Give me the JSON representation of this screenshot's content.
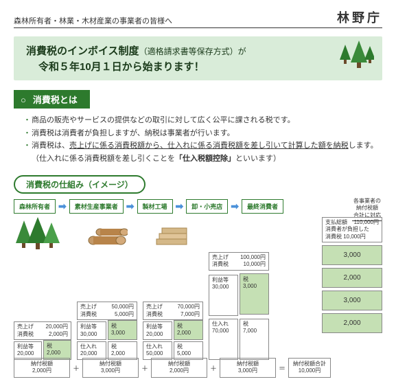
{
  "header": {
    "left": "森林所有者・林業・木材産業の事業者の皆様へ",
    "agency": "林野庁"
  },
  "banner": {
    "line1a": "消費税のインボイス制度",
    "line1b": "（適格請求書等保存方式）が",
    "line2": "令和５年10月１日から始まります！"
  },
  "section1": {
    "title": "消費税とは",
    "bullets": [
      "商品の販売やサービスの提供などの取引に対して広く公平に課される税です。",
      "消費税は消費者が負担しますが、納税は事業者が行います。",
      "消費税は、<u>売上げに係る消費税額から、仕入れに係る消費税額を差し引いて計算した額を納税</u>します。（仕入れに係る消費税額を差し引くことを<b>「仕入税額控除」</b>といいます）"
    ]
  },
  "diagram": {
    "title": "消費税の仕組み（イメージ）",
    "stages": [
      "森林所有者",
      "素材生産事業者",
      "製材工場",
      "卸・小売店",
      "最終消費者"
    ],
    "note_right": "各事業者の\n納付税額\n合計に対応",
    "col1": {
      "sale": "20,000",
      "sale_tax": "2,000",
      "profit": "20,000",
      "tax": "2,000",
      "pay": "2,000"
    },
    "col2": {
      "sale": "50,000",
      "sale_tax": "5,000",
      "profit": "30,000",
      "tax": "3,000",
      "buy": "20,000",
      "buy_tax": "2,000",
      "pay": "3,000"
    },
    "col3": {
      "sale": "70,000",
      "sale_tax": "7,000",
      "profit": "20,000",
      "tax": "2,000",
      "buy": "50,000",
      "buy_tax": "5,000",
      "pay": "2,000"
    },
    "col4": {
      "sale": "100,000",
      "sale_tax": "10,000",
      "profit": "30,000",
      "tax": "3,000",
      "buy": "70,000",
      "buy_tax": "7,000",
      "pay": "3,000"
    },
    "final": {
      "paid": "110,000",
      "burden": "10,000",
      "cells": [
        "3,000",
        "2,000",
        "3,000",
        "2,000"
      ]
    },
    "total": {
      "label": "納付税額合計",
      "amount": "10,000円"
    },
    "labels": {
      "sale": "売上げ",
      "ctax": "消費税",
      "profit": "利益等",
      "tax": "税",
      "buy": "仕入れ",
      "pay": "納付税額",
      "paid": "支払総額",
      "burden": "消費者が負担した\n消費税"
    }
  },
  "colors": {
    "green": "#2d7a2d",
    "lightgreen": "#d9ecd9",
    "cellgreen": "#c5e0b4",
    "blue": "#4a90d9"
  }
}
